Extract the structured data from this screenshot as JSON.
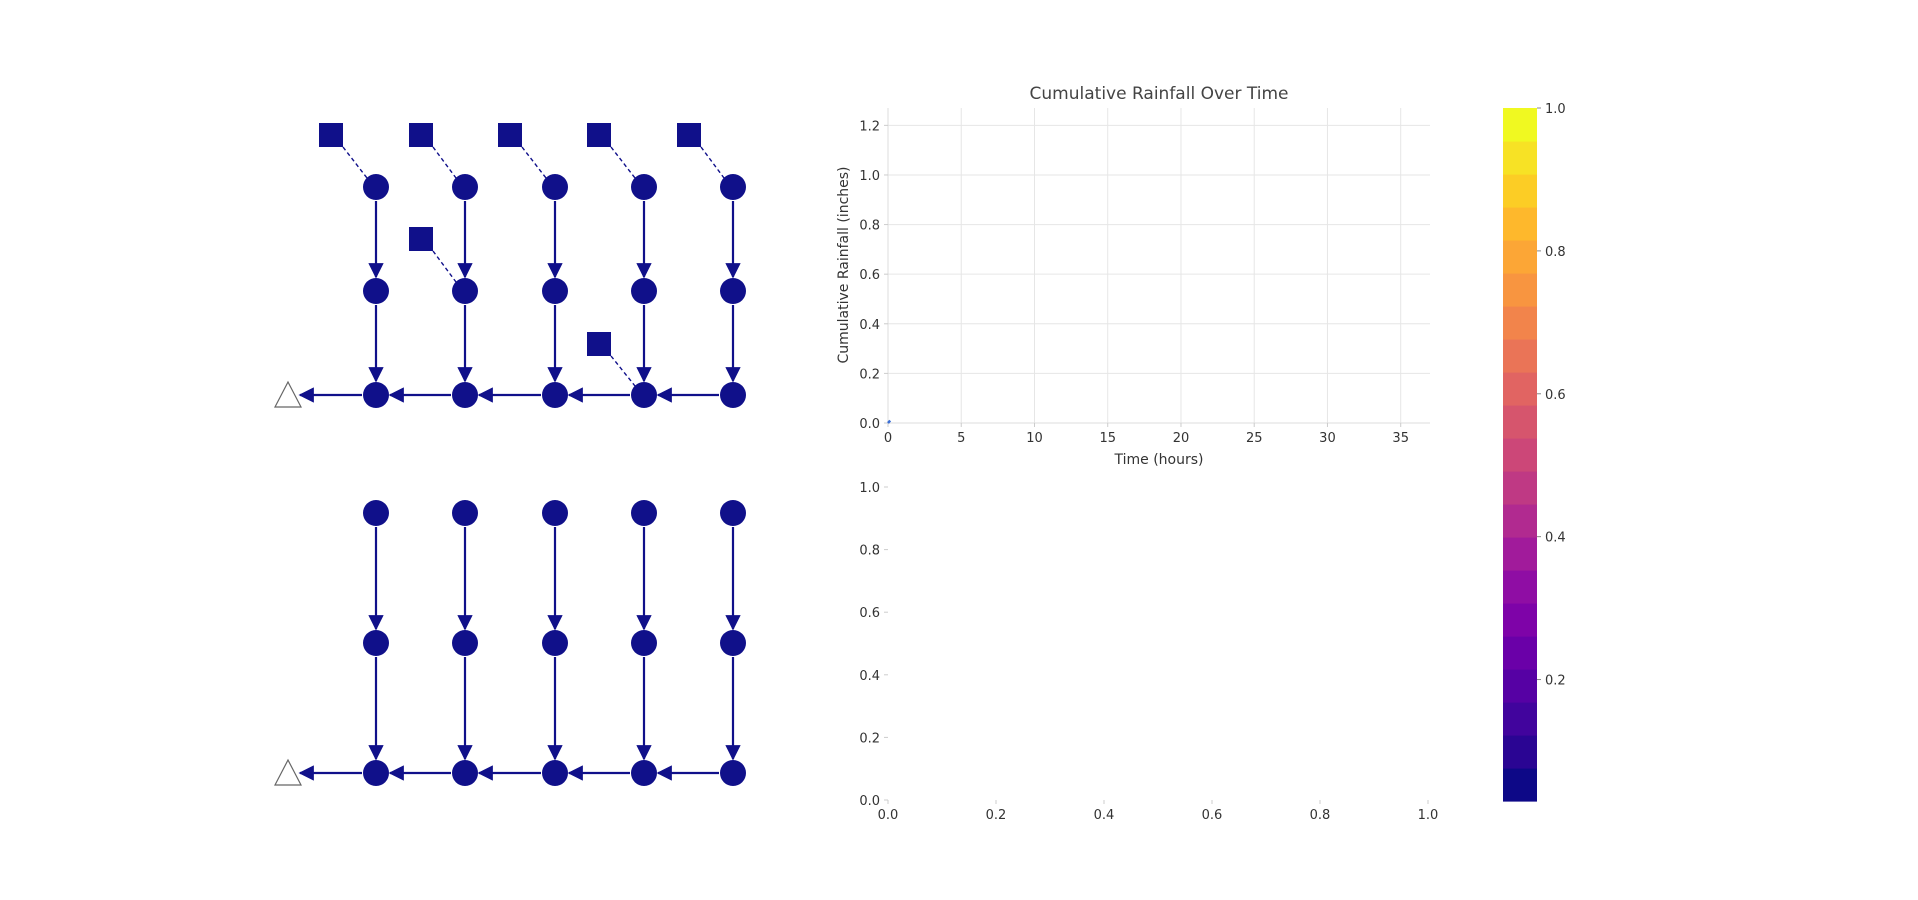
{
  "colors": {
    "node": "#10108a",
    "edge": "#10108a",
    "outfall_stroke": "#666666",
    "grid": "#e6e6e6",
    "rain_line": "#3b6fd6"
  },
  "network": {
    "description_icons": [
      "node-circle-icon",
      "rain-gauge-square-icon",
      "outfall-triangle-icon"
    ]
  },
  "chart_data": [
    {
      "type": "line",
      "title": "Cumulative Rainfall Over Time",
      "xlabel": "Time (hours)",
      "ylabel": "Cumulative Rainfall (inches)",
      "xlim": [
        0,
        37
      ],
      "ylim": [
        0,
        1.27
      ],
      "xticks": [
        "0",
        "5",
        "10",
        "15",
        "20",
        "25",
        "30",
        "35"
      ],
      "xtick_values": [
        0,
        5,
        10,
        15,
        20,
        25,
        30,
        35
      ],
      "yticks": [
        "0.0",
        "0.2",
        "0.4",
        "0.6",
        "0.8",
        "1.0",
        "1.2"
      ],
      "ytick_values": [
        0,
        0.2,
        0.4,
        0.6,
        0.8,
        1.0,
        1.2
      ],
      "grid": true,
      "series": [
        {
          "x": [
            0,
            0.15
          ],
          "y": [
            0,
            0.01
          ]
        }
      ]
    },
    {
      "type": "line",
      "title": "",
      "xlabel": "",
      "ylabel": "",
      "xlim": [
        0,
        1
      ],
      "ylim": [
        0,
        1
      ],
      "xticks": [
        "0.0",
        "0.2",
        "0.4",
        "0.6",
        "0.8",
        "1.0"
      ],
      "xtick_values": [
        0,
        0.2,
        0.4,
        0.6,
        0.8,
        1.0
      ],
      "yticks": [
        "0.0",
        "0.2",
        "0.4",
        "0.6",
        "0.8",
        "1.0"
      ],
      "ytick_values": [
        0,
        0.2,
        0.4,
        0.6,
        0.8,
        1.0
      ],
      "grid": false,
      "series": []
    },
    {
      "type": "heatmap",
      "title": "",
      "colormap": "plasma",
      "clim": [
        0.03,
        1.0
      ],
      "ticks": [
        "0.2",
        "0.4",
        "0.6",
        "0.8",
        "1.0"
      ],
      "tick_values": [
        0.2,
        0.4,
        0.6,
        0.8,
        1.0
      ],
      "colors": [
        "#0d0887",
        "#2a0593",
        "#41049d",
        "#5601a4",
        "#6a00a8",
        "#7e03a8",
        "#8f0da4",
        "#a11b9b",
        "#b12a90",
        "#bf3984",
        "#cc4778",
        "#d6556d",
        "#e16462",
        "#ea7457",
        "#f2844b",
        "#f89540",
        "#fca636",
        "#feb82c",
        "#fccd25",
        "#f7e225",
        "#f0f921"
      ]
    }
  ]
}
